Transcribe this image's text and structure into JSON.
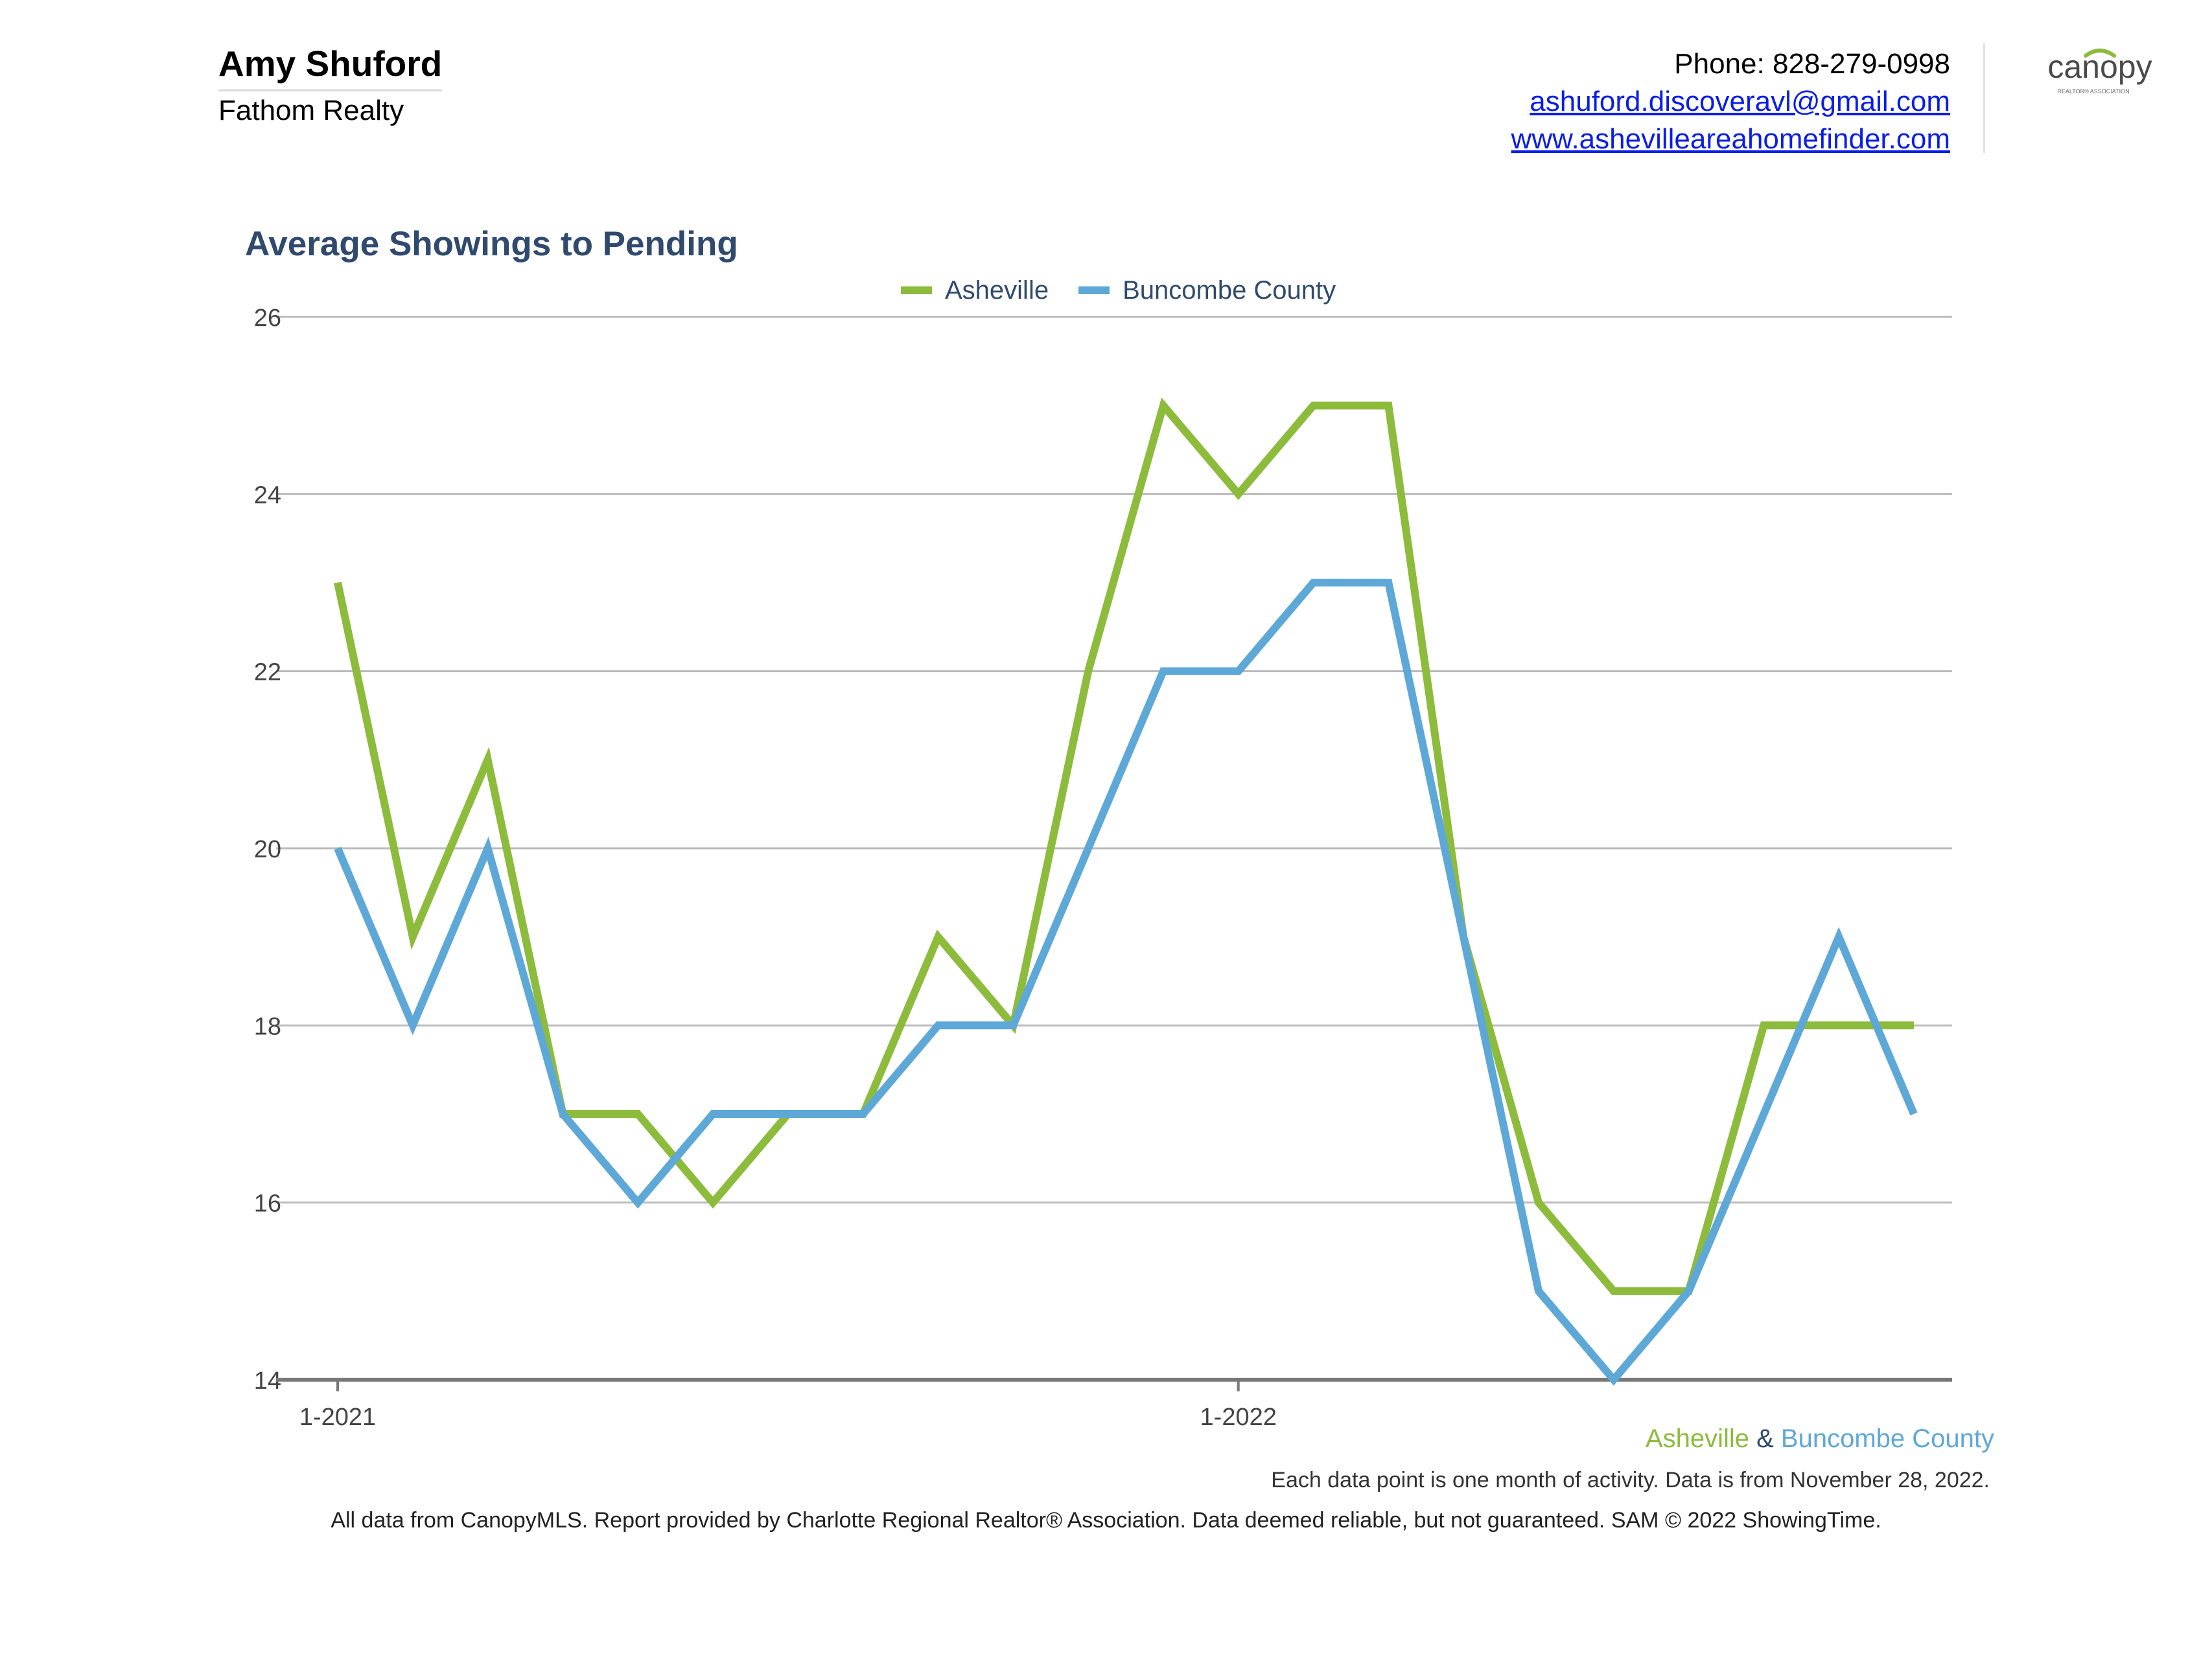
{
  "header": {
    "agent_name": "Amy Shuford",
    "company": "Fathom Realty",
    "phone": "Phone: 828-279-0998",
    "email": "ashuford.discoveravl@gmail.com",
    "website": "www.ashevilleareahomefinder.com",
    "logo_text": "canopy",
    "logo_subtext": "REALTOR® ASSOCIATION"
  },
  "colors": {
    "asheville": "#8dbb3c",
    "buncombe": "#5ea8d8",
    "title": "#2f4a6d",
    "grid": "#bbbbbb",
    "axis": "#777777"
  },
  "chart_data": {
    "type": "line",
    "title": "Average Showings to Pending",
    "xlabel": "",
    "ylabel": "",
    "x": [
      "1-2021",
      "2-2021",
      "3-2021",
      "4-2021",
      "5-2021",
      "6-2021",
      "7-2021",
      "8-2021",
      "9-2021",
      "10-2021",
      "11-2021",
      "12-2021",
      "1-2022",
      "2-2022",
      "3-2022",
      "4-2022",
      "5-2022",
      "6-2022",
      "7-2022",
      "8-2022",
      "9-2022",
      "10-2022"
    ],
    "x_tick_labels": [
      "1-2021",
      "1-2022"
    ],
    "x_tick_indices": [
      0,
      12
    ],
    "series": [
      {
        "name": "Asheville",
        "color": "#8dbb3c",
        "values": [
          23,
          19,
          21,
          17,
          17,
          16,
          17,
          17,
          19,
          18,
          22,
          25,
          24,
          25,
          25,
          19,
          16,
          15,
          15,
          18,
          18,
          18
        ]
      },
      {
        "name": "Buncombe County",
        "color": "#5ea8d8",
        "values": [
          20,
          18,
          20,
          17,
          16,
          17,
          17,
          17,
          18,
          18,
          20,
          22,
          22,
          23,
          23,
          19,
          15,
          14,
          15,
          17,
          19,
          17
        ]
      }
    ],
    "ylim": [
      14,
      26
    ],
    "y_ticks": [
      14,
      16,
      18,
      20,
      22,
      24,
      26
    ],
    "grid": true,
    "legend_position": "top-center"
  },
  "footer": {
    "legend_a": "Asheville",
    "legend_amp": "&",
    "legend_b": "Buncombe County",
    "note": "Each data point is one month of activity. Data is from November 28, 2022.",
    "disclaimer": "All data from CanopyMLS. Report provided by Charlotte Regional Realtor® Association. Data deemed reliable, but not guaranteed. SAM © 2022 ShowingTime."
  }
}
